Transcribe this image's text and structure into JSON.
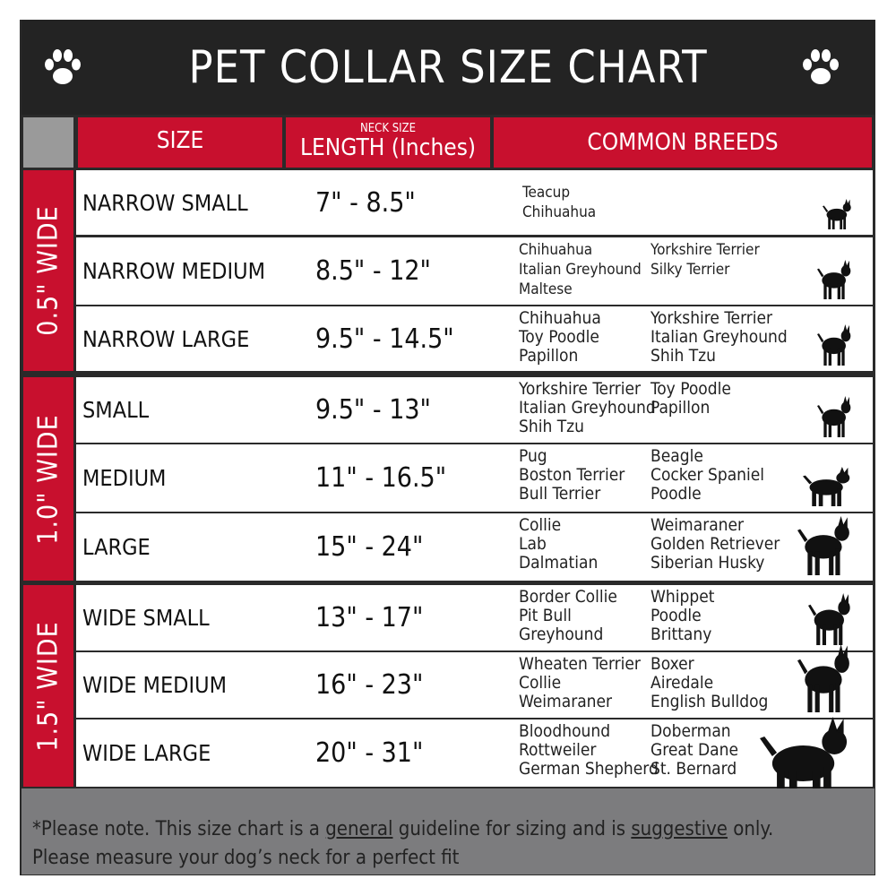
{
  "title": "PET COLLAR SIZE CHART",
  "headers": {
    "size": "SIZE",
    "neck_size": "NECK SIZE",
    "length": "LENGTH (Inches)",
    "breeds": "COMMON BREEDS"
  },
  "groups": [
    {
      "label": "0.5\" WIDE"
    },
    {
      "label": "1.0\" WIDE"
    },
    {
      "label": "1.5\" WIDE"
    }
  ],
  "rows": [
    {
      "size": "NARROW SMALL",
      "length": "7\" - 8.5\"",
      "breeds_left": [
        "Teacup",
        "Chihuahua"
      ],
      "breeds_right": []
    },
    {
      "size": "NARROW MEDIUM",
      "length": "8.5\" - 12\"",
      "breeds_left": [
        "Chihuahua",
        "Italian Greyhound",
        "Maltese"
      ],
      "breeds_right": [
        "Yorkshire Terrier",
        "Silky Terrier"
      ]
    },
    {
      "size": "NARROW LARGE",
      "length": "9.5\" - 14.5\"",
      "breeds_left": [
        "Chihuahua",
        "Toy Poodle",
        "Papillon"
      ],
      "breeds_right": [
        "Yorkshire Terrier",
        "Italian Greyhound",
        "Shih Tzu"
      ]
    },
    {
      "size": "SMALL",
      "length": "9.5\" - 13\"",
      "breeds_left": [
        "Yorkshire Terrier",
        "Italian Greyhound",
        "Shih Tzu"
      ],
      "breeds_right": [
        "Toy Poodle",
        "Papillon"
      ]
    },
    {
      "size": "MEDIUM",
      "length": "11\" - 16.5\"",
      "breeds_left": [
        "Pug",
        "Boston Terrier",
        "Bull Terrier"
      ],
      "breeds_right": [
        "Beagle",
        "Cocker Spaniel",
        "Poodle"
      ]
    },
    {
      "size": "LARGE",
      "length": "15\" - 24\"",
      "breeds_left": [
        "Collie",
        "Lab",
        "Dalmatian"
      ],
      "breeds_right": [
        "Weimaraner",
        "Golden Retriever",
        "Siberian Husky"
      ]
    },
    {
      "size": "WIDE SMALL",
      "length": "13\" - 17\"",
      "breeds_left": [
        "Border Collie",
        "Pit Bull",
        "Greyhound"
      ],
      "breeds_right": [
        "Whippet",
        "Poodle",
        "Brittany"
      ]
    },
    {
      "size": "WIDE MEDIUM",
      "length": "16\" - 23\"",
      "breeds_left": [
        "Wheaten Terrier",
        "Collie",
        "Weimaraner"
      ],
      "breeds_right": [
        "Boxer",
        "Airedale",
        "English Bulldog"
      ]
    },
    {
      "size": "WIDE LARGE",
      "length": "20\" - 31\"",
      "breeds_left": [
        "Bloodhound",
        "Rottweiler",
        "German Shepherd"
      ],
      "breeds_right": [
        "Doberman",
        "Great Dane",
        "St. Bernard"
      ]
    }
  ],
  "footer": {
    "p1": "*Please note. This size chart is a ",
    "u1": "general",
    "p2": " guideline for sizing and is ",
    "u2": "suggestive",
    "p3": " only.",
    "line2": "Please measure your dog’s neck for a perfect fit"
  },
  "colors": {
    "red": "#c8102e",
    "dark": "#232323",
    "gray": "#7c7c7e"
  }
}
